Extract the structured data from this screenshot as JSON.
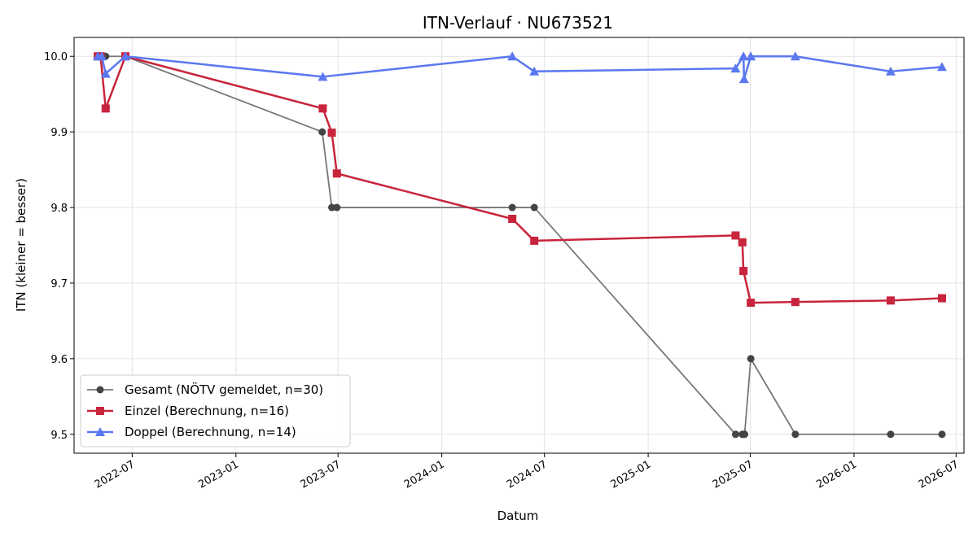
{
  "chart_data": {
    "type": "line",
    "title": "ITN-Verlauf · NU673521",
    "xlabel": "Datum",
    "ylabel": "ITN  (kleiner = besser)",
    "xlim": [
      "2022-03-20",
      "2026-07-15"
    ],
    "ylim": [
      9.475,
      10.025
    ],
    "x_ticks": [
      "2022-07",
      "2023-01",
      "2023-07",
      "2024-01",
      "2024-07",
      "2025-01",
      "2025-07",
      "2026-01",
      "2026-07"
    ],
    "y_ticks": [
      9.5,
      9.6,
      9.7,
      9.8,
      9.9,
      10.0
    ],
    "y_tick_labels": [
      "9.5",
      "9.6",
      "9.7",
      "9.8",
      "9.9",
      "10.0"
    ],
    "grid": true,
    "legend_position": "lower-left",
    "series": [
      {
        "name": "Gesamt (NÖTV gemeldet, n=30)",
        "color": "#777777",
        "marker_color": "#444444",
        "marker": "circle",
        "points": [
          [
            "2022-05-01",
            10.0
          ],
          [
            "2022-05-06",
            10.0
          ],
          [
            "2022-05-10",
            10.0
          ],
          [
            "2022-05-13",
            10.0
          ],
          [
            "2022-05-15",
            10.0
          ],
          [
            "2022-06-19",
            10.0
          ],
          [
            "2023-06-03",
            9.9
          ],
          [
            "2023-06-20",
            9.8
          ],
          [
            "2023-06-29",
            9.8
          ],
          [
            "2024-05-05",
            9.8
          ],
          [
            "2024-06-13",
            9.8
          ],
          [
            "2025-06-05",
            9.5
          ],
          [
            "2025-06-17",
            9.5
          ],
          [
            "2025-06-19",
            9.5
          ],
          [
            "2025-06-21",
            9.5
          ],
          [
            "2025-07-02",
            9.6
          ],
          [
            "2025-09-19",
            9.5
          ],
          [
            "2026-03-07",
            9.5
          ],
          [
            "2026-06-06",
            9.5
          ]
        ]
      },
      {
        "name": "Einzel (Berechnung, n=16)",
        "color": "#c8243c",
        "marker": "square",
        "points": [
          [
            "2022-05-01",
            10.0
          ],
          [
            "2022-05-06",
            10.0
          ],
          [
            "2022-05-15",
            9.931
          ],
          [
            "2022-06-19",
            10.0
          ],
          [
            "2023-06-04",
            9.931
          ],
          [
            "2023-06-20",
            9.899
          ],
          [
            "2023-06-29",
            9.845
          ],
          [
            "2024-05-05",
            9.785
          ],
          [
            "2024-06-13",
            9.756
          ],
          [
            "2025-06-05",
            9.763
          ],
          [
            "2025-06-17",
            9.754
          ],
          [
            "2025-06-19",
            9.716
          ],
          [
            "2025-07-02",
            9.674
          ],
          [
            "2025-09-19",
            9.675
          ],
          [
            "2026-03-07",
            9.677
          ],
          [
            "2026-06-06",
            9.68
          ]
        ]
      },
      {
        "name": "Doppel (Berechnung, n=14)",
        "color": "#5b78f0",
        "marker": "triangle",
        "points": [
          [
            "2022-05-01",
            10.0
          ],
          [
            "2022-05-08",
            10.0
          ],
          [
            "2022-05-15",
            9.977
          ],
          [
            "2022-06-19",
            10.0
          ],
          [
            "2023-06-04",
            9.973
          ],
          [
            "2024-05-05",
            10.0
          ],
          [
            "2024-06-13",
            9.98
          ],
          [
            "2025-06-05",
            9.984
          ],
          [
            "2025-06-19",
            10.0
          ],
          [
            "2025-06-20",
            9.97
          ],
          [
            "2025-07-02",
            10.0
          ],
          [
            "2025-09-19",
            10.0
          ],
          [
            "2026-03-07",
            9.98
          ],
          [
            "2026-06-06",
            9.986
          ]
        ]
      }
    ]
  }
}
